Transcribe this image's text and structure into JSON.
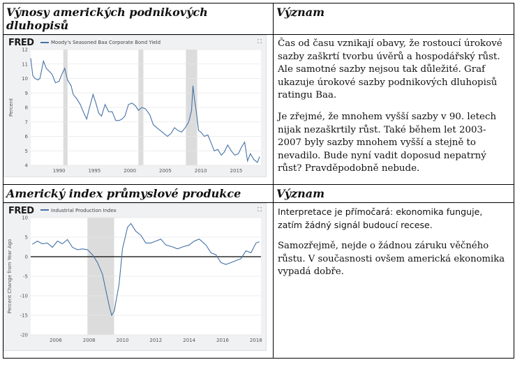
{
  "section1": {
    "header_left": "Výnosy amerických podnikových dluhopisů",
    "header_right": "Význam",
    "paragraph1": "Čas od času vznikají obavy, že rostoucí úrokové sazby zaškrtí tvorbu úvěrů a hospodářský růst. Ale samotné sazby nejsou tak důležité. Graf ukazuje úrokové sazby podnikových dluhopisů ratingu Baa.",
    "paragraph2": "Je zřejmé, že mnohem vyšší sazby v 90. letech nijak nezaškrtily růst. Také během let 2003-2007 byly sazby mnohem vyšší a stejně to nevadilo. Bude nyní vadit doposud nepatrný růst? Pravděpodobně nebude."
  },
  "section2": {
    "header_left": "Americký index průmyslové produkce",
    "header_right": "Význam",
    "paragraph1": "Interpretace je přímočará: ekonomika funguje, zatím žádný signál budoucí recese.",
    "paragraph2": "Samozřejmě, nejde o žádnou záruku věčného růstu. V současnosti ovšem americká ekonomika vypadá dobře."
  },
  "chart_data": [
    {
      "type": "line",
      "logo": "FRED",
      "legend": "Moody's Seasoned Baa Corporate Bond Yield",
      "ylabel": "Percent",
      "xlabel": "",
      "ylim": [
        4,
        12
      ],
      "xlim": [
        1986,
        2018.5
      ],
      "yticks": [
        4,
        5,
        6,
        7,
        8,
        9,
        10,
        11,
        12
      ],
      "xticks": [
        1990,
        1995,
        2000,
        2005,
        2010,
        2015
      ],
      "recessions": [
        [
          1990.6,
          1991.2
        ],
        [
          2001.2,
          2001.9
        ],
        [
          2007.9,
          2009.5
        ]
      ],
      "grid": true,
      "color": "#4572a7",
      "series": [
        {
          "x": [
            1986.0,
            1986.3,
            1986.6,
            1987.0,
            1987.3,
            1987.8,
            1988.2,
            1988.6,
            1989.0,
            1989.5,
            1990.0,
            1990.4,
            1990.8,
            1991.2,
            1991.7,
            1992.0,
            1992.5,
            1993.0,
            1993.5,
            1993.9,
            1994.3,
            1994.8,
            1995.2,
            1995.6,
            1996.0,
            1996.5,
            1997.0,
            1997.5,
            1998.0,
            1998.5,
            1998.9,
            1999.3,
            1999.8,
            2000.3,
            2000.8,
            2001.2,
            2001.7,
            2002.2,
            2002.8,
            2003.3,
            2003.8,
            2004.3,
            2004.8,
            2005.3,
            2005.8,
            2006.3,
            2006.8,
            2007.3,
            2007.8,
            2008.3,
            2008.7,
            2008.9,
            2009.1,
            2009.4,
            2009.7,
            2010.0,
            2010.5,
            2011.0,
            2011.5,
            2011.9,
            2012.4,
            2012.9,
            2013.3,
            2013.8,
            2014.3,
            2014.8,
            2015.3,
            2015.8,
            2016.2,
            2016.6,
            2017.0,
            2017.5,
            2018.0,
            2018.3
          ],
          "y": [
            11.4,
            10.2,
            10.0,
            9.9,
            10.0,
            11.2,
            10.7,
            10.5,
            10.3,
            9.7,
            9.8,
            10.3,
            10.7,
            9.9,
            9.5,
            8.9,
            8.6,
            8.2,
            7.6,
            7.2,
            8.0,
            8.9,
            8.3,
            7.6,
            7.4,
            8.2,
            7.7,
            7.7,
            7.1,
            7.1,
            7.2,
            7.4,
            8.2,
            8.3,
            8.1,
            7.8,
            8.0,
            7.9,
            7.5,
            6.8,
            6.6,
            6.4,
            6.2,
            6.0,
            6.2,
            6.6,
            6.4,
            6.3,
            6.6,
            7.0,
            7.8,
            9.5,
            8.6,
            7.6,
            6.4,
            6.3,
            6.0,
            6.1,
            5.5,
            5.0,
            5.1,
            4.7,
            4.9,
            5.4,
            5.0,
            4.7,
            4.8,
            5.3,
            5.6,
            4.3,
            4.8,
            4.4,
            4.2,
            4.6
          ]
        }
      ]
    },
    {
      "type": "line",
      "logo": "FRED",
      "legend": "Industrial Production Index",
      "ylabel": "Percent Change from Year Ago",
      "xlabel": "",
      "ylim": [
        -20,
        10
      ],
      "xlim": [
        2004.5,
        2018.3
      ],
      "yticks": [
        -20,
        -15,
        -10,
        -5,
        0,
        5,
        10
      ],
      "xticks": [
        2006,
        2008,
        2010,
        2012,
        2014,
        2016,
        2018
      ],
      "recessions": [
        [
          2007.9,
          2009.5
        ]
      ],
      "grid": true,
      "color": "#4572a7",
      "series": [
        {
          "x": [
            2004.6,
            2004.9,
            2005.2,
            2005.5,
            2005.8,
            2006.1,
            2006.4,
            2006.7,
            2007.0,
            2007.3,
            2007.6,
            2007.9,
            2008.2,
            2008.5,
            2008.8,
            2009.0,
            2009.2,
            2009.35,
            2009.5,
            2009.8,
            2010.0,
            2010.3,
            2010.5,
            2010.8,
            2011.1,
            2011.4,
            2011.7,
            2012.0,
            2012.3,
            2012.6,
            2013.0,
            2013.3,
            2013.6,
            2014.0,
            2014.3,
            2014.6,
            2015.0,
            2015.3,
            2015.6,
            2015.9,
            2016.2,
            2016.5,
            2016.8,
            2017.1,
            2017.4,
            2017.7,
            2018.0,
            2018.2
          ],
          "y": [
            3.2,
            4.0,
            3.3,
            3.5,
            2.4,
            4.0,
            3.3,
            4.4,
            2.4,
            1.8,
            2.0,
            1.8,
            0.5,
            -1.5,
            -4.5,
            -8.5,
            -12.5,
            -15.0,
            -14.0,
            -7.0,
            2.0,
            7.5,
            8.5,
            6.5,
            5.5,
            3.5,
            3.5,
            4.0,
            4.5,
            3.0,
            2.5,
            2.0,
            2.5,
            3.0,
            4.0,
            4.5,
            3.0,
            1.0,
            0.5,
            -1.5,
            -2.0,
            -1.5,
            -1.0,
            -0.5,
            1.5,
            1.0,
            3.5,
            3.8
          ]
        }
      ]
    }
  ]
}
